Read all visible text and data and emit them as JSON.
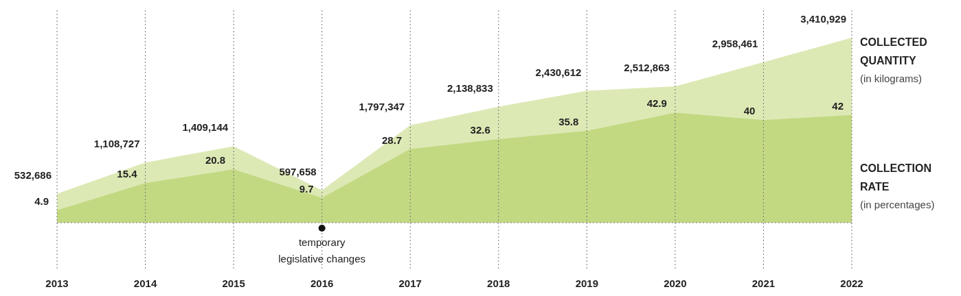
{
  "chart_data": {
    "type": "area",
    "x": [
      2013,
      2014,
      2015,
      2016,
      2017,
      2018,
      2019,
      2020,
      2021,
      2022
    ],
    "xlim": [
      2013,
      2022
    ],
    "xticks": [
      2013,
      2014,
      2015,
      2016,
      2017,
      2018,
      2019,
      2020,
      2021,
      2022
    ],
    "ylabel": "(in kilograms)",
    "y2label": "(in percentages)",
    "tick_labels": "x",
    "grid": "x",
    "series": [
      {
        "name": "COLLECTED QUANTITY",
        "color": "#dde9b5",
        "values": [
          532686,
          1108727,
          1409144,
          597658,
          1797347,
          2138833,
          2430612,
          2512863,
          2958461,
          3410929
        ],
        "value_labels": [
          "532,686",
          "1,108,727",
          "1,409,144",
          "597,658",
          "1,797,347",
          "2,138,833",
          "2,430,612",
          "2,512,863",
          "2,958,461",
          "3,410,929"
        ]
      },
      {
        "name": "COLLECTION RATE",
        "color": "#c2d982",
        "axis": "y2",
        "values": [
          4.9,
          15.4,
          20.8,
          9.7,
          28.7,
          32.6,
          35.8,
          42.9,
          40,
          42
        ],
        "value_labels": [
          "4.9",
          "15.4",
          "20.8",
          "9.7",
          "28.7",
          "32.6",
          "35.8",
          "42.9",
          "40",
          "42"
        ]
      }
    ],
    "annotations": [
      {
        "text": "temporary legislative changes",
        "x": 2016,
        "y": 0
      }
    ]
  }
}
